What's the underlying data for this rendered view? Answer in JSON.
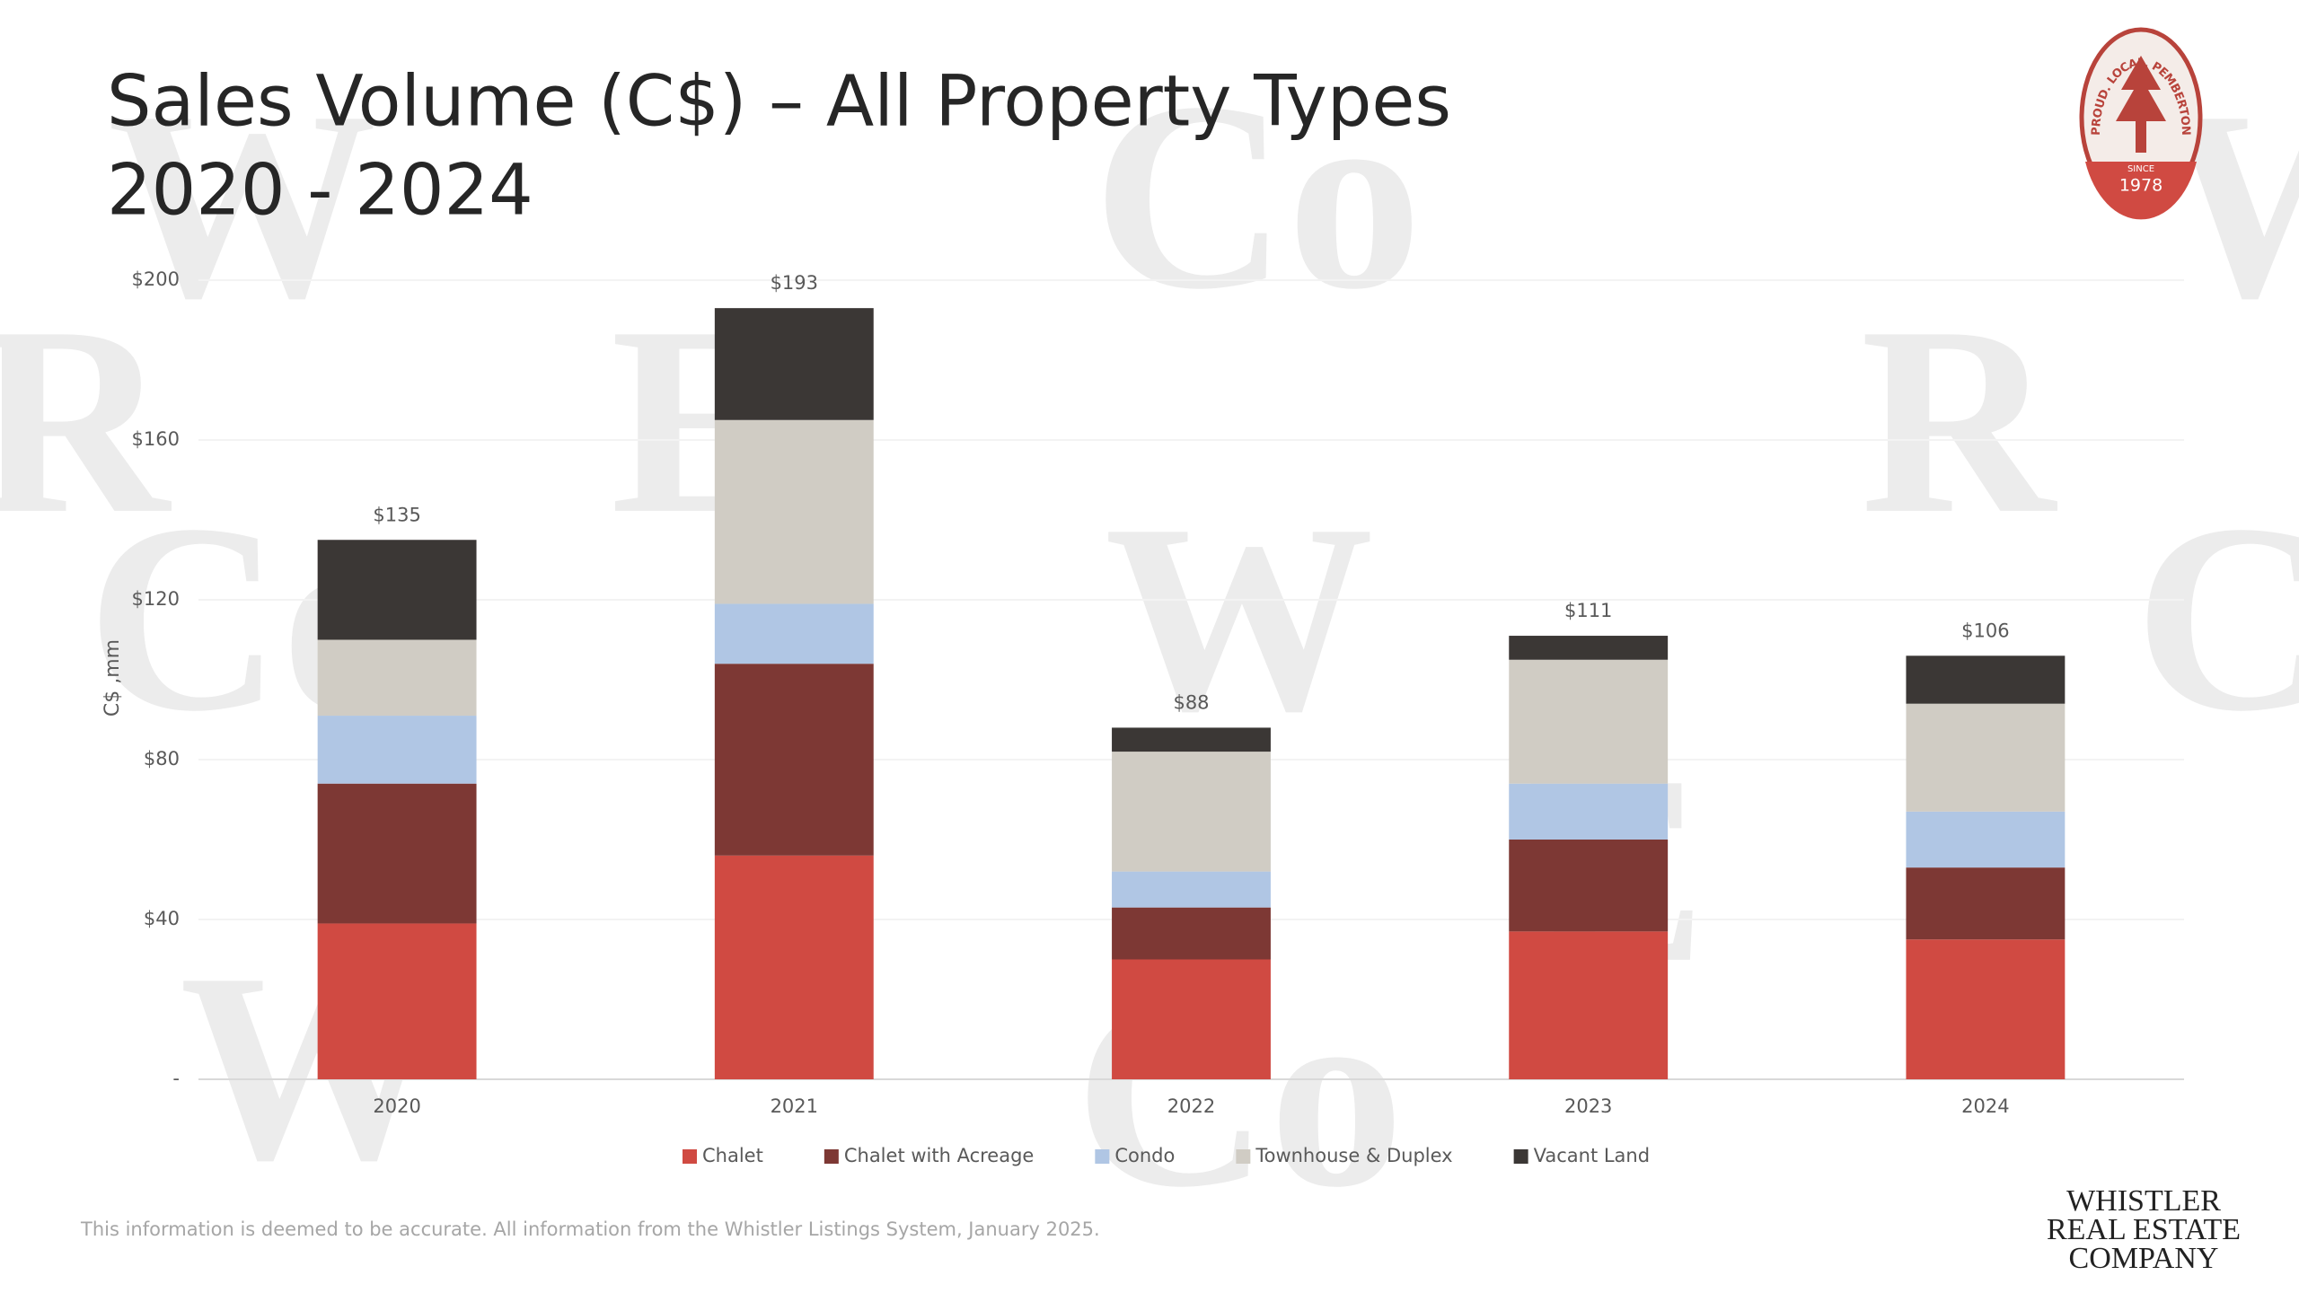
{
  "chart_data": {
    "type": "stacked-bar",
    "title": "Sales Volume (C$) – All Property Types",
    "subtitle": "2020 - 2024",
    "y_label": "C$ ,mm",
    "categories": [
      "2020",
      "2021",
      "2022",
      "2023",
      "2024"
    ],
    "series": [
      {
        "name": "Chalet",
        "color": "#d04a42",
        "values": [
          39,
          56,
          30,
          37,
          35
        ]
      },
      {
        "name": "Chalet with Acreage",
        "color": "#7d3834",
        "values": [
          35,
          48,
          13,
          23,
          18
        ]
      },
      {
        "name": "Condo",
        "color": "#b0c6e4",
        "values": [
          17,
          15,
          9,
          14,
          14
        ]
      },
      {
        "name": "Townhouse & Duplex",
        "color": "#d0ccc4",
        "values": [
          19,
          46,
          30,
          31,
          27
        ]
      },
      {
        "name": "Vacant Land",
        "color": "#3b3735",
        "values": [
          25,
          28,
          6,
          6,
          12
        ]
      }
    ],
    "totals": [
      135,
      193,
      88,
      111,
      106
    ],
    "total_labels": [
      "$135",
      "$193",
      "$88",
      "$111",
      "$106"
    ],
    "ylim": [
      0,
      200
    ],
    "yticks": [
      {
        "value": 0,
        "label": "-"
      },
      {
        "value": 40,
        "label": "$40"
      },
      {
        "value": 80,
        "label": "$80"
      },
      {
        "value": 120,
        "label": "$120"
      },
      {
        "value": 160,
        "label": "$160"
      },
      {
        "value": 200,
        "label": "$200"
      }
    ],
    "grid": true,
    "legend": "bottom"
  },
  "footer": "This information is deemed to be accurate. All information from the Whistler Listings System, January 2025.",
  "logo": {
    "motto": "PROUD. LOCAL. PEMBERTON",
    "since": "SINCE",
    "year": "1978"
  },
  "brand": [
    "WHISTLER",
    "REAL ESTATE",
    "COMPANY"
  ],
  "watermark": [
    "W",
    "Co",
    "R",
    "E"
  ]
}
